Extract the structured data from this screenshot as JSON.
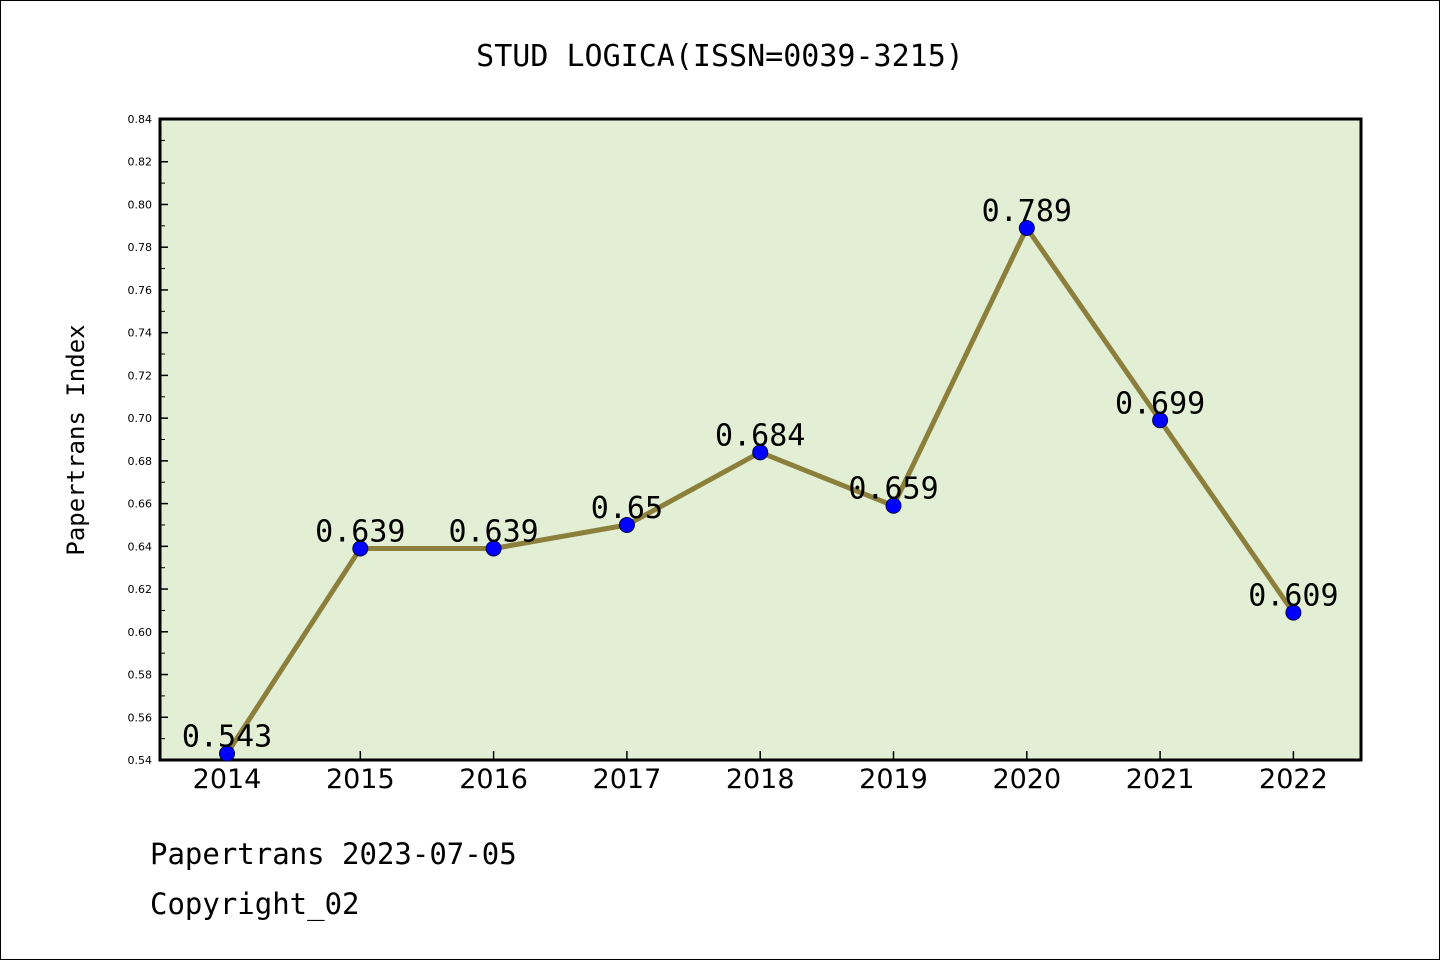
{
  "chart_data": {
    "type": "line",
    "title": "STUD LOGICA(ISSN=0039-3215)",
    "xlabel": "",
    "ylabel": "Papertrans Index",
    "categories": [
      "2014",
      "2015",
      "2016",
      "2017",
      "2018",
      "2019",
      "2020",
      "2021",
      "2022"
    ],
    "series": [
      {
        "values": [
          0.543,
          0.639,
          0.639,
          0.65,
          0.684,
          0.659,
          0.789,
          0.699,
          0.609
        ],
        "data_labels": [
          "0.543",
          "0.639",
          "0.639",
          "0.65",
          "0.684",
          "0.659",
          "0.789",
          "0.699",
          "0.609"
        ]
      }
    ],
    "ylim": [
      0.54,
      0.84
    ],
    "yticks": [
      "0.54",
      "0.56",
      "0.58",
      "0.60",
      "0.62",
      "0.64",
      "0.66",
      "0.68",
      "0.70",
      "0.72",
      "0.74",
      "0.76",
      "0.78",
      "0.80",
      "0.82",
      "0.84"
    ],
    "grid": false,
    "legend": "none"
  },
  "footer": {
    "line1": "Papertrans 2023-07-05",
    "line2": "Copyright_02"
  },
  "colors": {
    "plot_background": "#e2efd5",
    "line": "#8c7f3b",
    "marker": "#0000ff",
    "axis": "#000000"
  }
}
